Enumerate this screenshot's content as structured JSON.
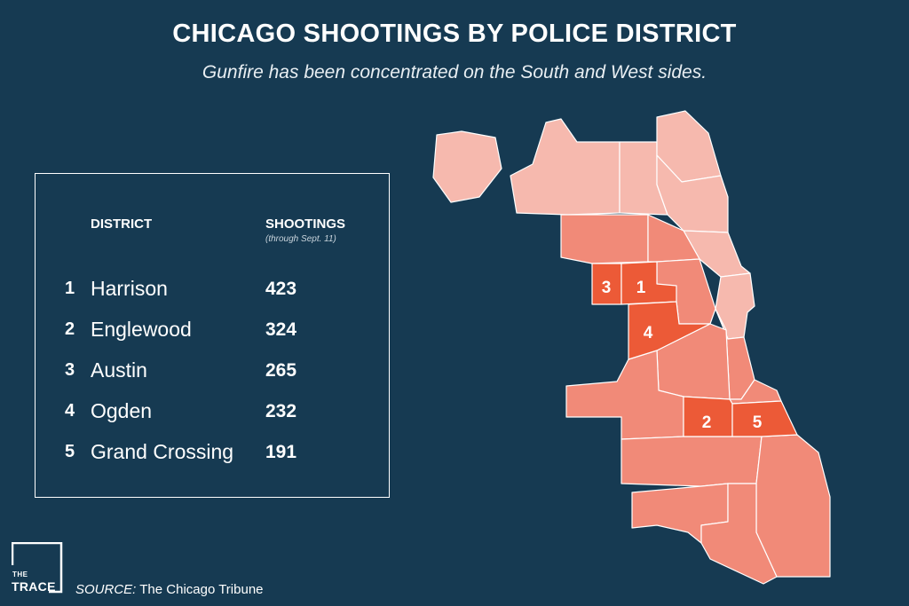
{
  "header": {
    "title": "CHICAGO SHOOTINGS BY POLICE DISTRICT",
    "subtitle": "Gunfire has been concentrated on the South and West sides."
  },
  "table": {
    "col_district": "DISTRICT",
    "col_shootings": "SHOOTINGS",
    "col_note": "(through Sept. 11)",
    "rows": [
      {
        "rank": "1",
        "district": "Harrison",
        "shootings": "423"
      },
      {
        "rank": "2",
        "district": "Englewood",
        "shootings": "324"
      },
      {
        "rank": "3",
        "district": "Austin",
        "shootings": "265"
      },
      {
        "rank": "4",
        "district": "Ogden",
        "shootings": "232"
      },
      {
        "rank": "5",
        "district": "Grand Crossing",
        "shootings": "191"
      }
    ]
  },
  "map": {
    "labels": {
      "harrison": "1",
      "englewood": "2",
      "austin": "3",
      "ogden": "4",
      "grand_crossing": "5"
    },
    "colors": {
      "low": "#f6b9ae",
      "medium": "#f18a78",
      "top": "#ec5a37",
      "background": "#163a52"
    }
  },
  "footer": {
    "logo_the": "THE",
    "logo_trace": "TRACE",
    "source_label": "SOURCE:",
    "source_text": "The Chicago Tribune"
  }
}
